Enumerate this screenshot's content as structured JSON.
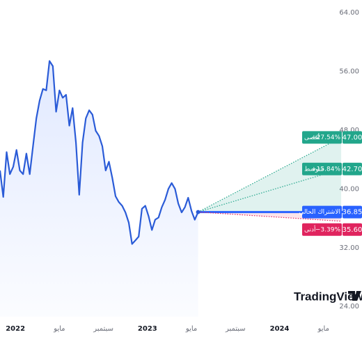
{
  "chart_data": {
    "type": "line",
    "x": [
      -1.4,
      -1.1,
      -0.8,
      -0.5,
      -0.2,
      0.1,
      0.4,
      0.7,
      1.0,
      1.3,
      1.6,
      1.9,
      2.2,
      2.5,
      2.8,
      3.1,
      3.4,
      3.7,
      4.0,
      4.3,
      4.6,
      4.9,
      5.2,
      5.5,
      5.8,
      6.1,
      6.4,
      6.7,
      7.0,
      7.3,
      7.6,
      7.9,
      8.2,
      8.5,
      8.8,
      9.1,
      9.4,
      9.7,
      10.0,
      10.3,
      10.6,
      10.9,
      11.2,
      11.5,
      11.8,
      12.1,
      12.4,
      12.7,
      13.0,
      13.3,
      13.6,
      13.9,
      14.2,
      14.5,
      14.8,
      15.1,
      15.4,
      15.7,
      16.0,
      16.3,
      16.6
    ],
    "series": [
      {
        "color": "#2a5bd7",
        "values": [
          42.5,
          38.9,
          45.0,
          42.0,
          43.0,
          45.3,
          42.5,
          42.0,
          44.8,
          42.0,
          45.8,
          49.6,
          52.0,
          53.6,
          53.4,
          57.4,
          56.7,
          50.5,
          53.4,
          52.4,
          52.8,
          48.6,
          51.0,
          46.3,
          39.2,
          46.3,
          49.6,
          50.7,
          50.1,
          47.9,
          47.2,
          45.8,
          42.5,
          43.7,
          41.5,
          39.0,
          38.2,
          37.7,
          36.8,
          35.4,
          32.5,
          33.0,
          33.5,
          37.3,
          37.7,
          36.3,
          34.4,
          35.8,
          36.1,
          37.5,
          38.5,
          40.0,
          40.8,
          40.0,
          38.0,
          36.8,
          37.5,
          38.8,
          37.0,
          35.8,
          36.85
        ]
      }
    ],
    "forecast": {
      "x_end": 29.6,
      "levels": [
        {
          "name": "أقصى",
          "value": 47,
          "value_label": "47.00",
          "change": 27.54,
          "change_label": "+27.54%",
          "color": "#22a68b"
        },
        {
          "name": "متوسط",
          "value": 42.7,
          "value_label": "42.70",
          "change": 15.84,
          "change_label": "+15.84%",
          "color": "#22a68b"
        },
        {
          "name": "الاشتراك الحالي",
          "value": 36.85,
          "value_label": "36.85",
          "color": "#2962ff"
        },
        {
          "name": "أدنى",
          "value": 35.6,
          "value_label": "35.60",
          "change": -3.39,
          "change_label": "−3.39%",
          "color": "#e0245e"
        }
      ]
    },
    "xlim": [
      -1.4,
      30.1
    ],
    "xticks": [
      {
        "value": 0,
        "label": "2022"
      },
      {
        "value": 4,
        "label": "مايو"
      },
      {
        "value": 8,
        "label": "سبتمبر"
      },
      {
        "value": 12,
        "label": "2023"
      },
      {
        "value": 16,
        "label": "مايو"
      },
      {
        "value": 20,
        "label": "سبتمبر"
      },
      {
        "value": 24,
        "label": "2024"
      },
      {
        "value": 28,
        "label": "مايو"
      }
    ],
    "ylim": [
      22.6,
      65.7
    ],
    "yticks": [
      {
        "value": 24,
        "label": "24.00"
      },
      {
        "value": 32,
        "label": "32.00"
      },
      {
        "value": 40,
        "label": "40.00"
      },
      {
        "value": 48,
        "label": "48.00"
      },
      {
        "value": 56,
        "label": "56.00"
      },
      {
        "value": 64,
        "label": "64.00"
      }
    ],
    "watermark": "TradingView"
  }
}
